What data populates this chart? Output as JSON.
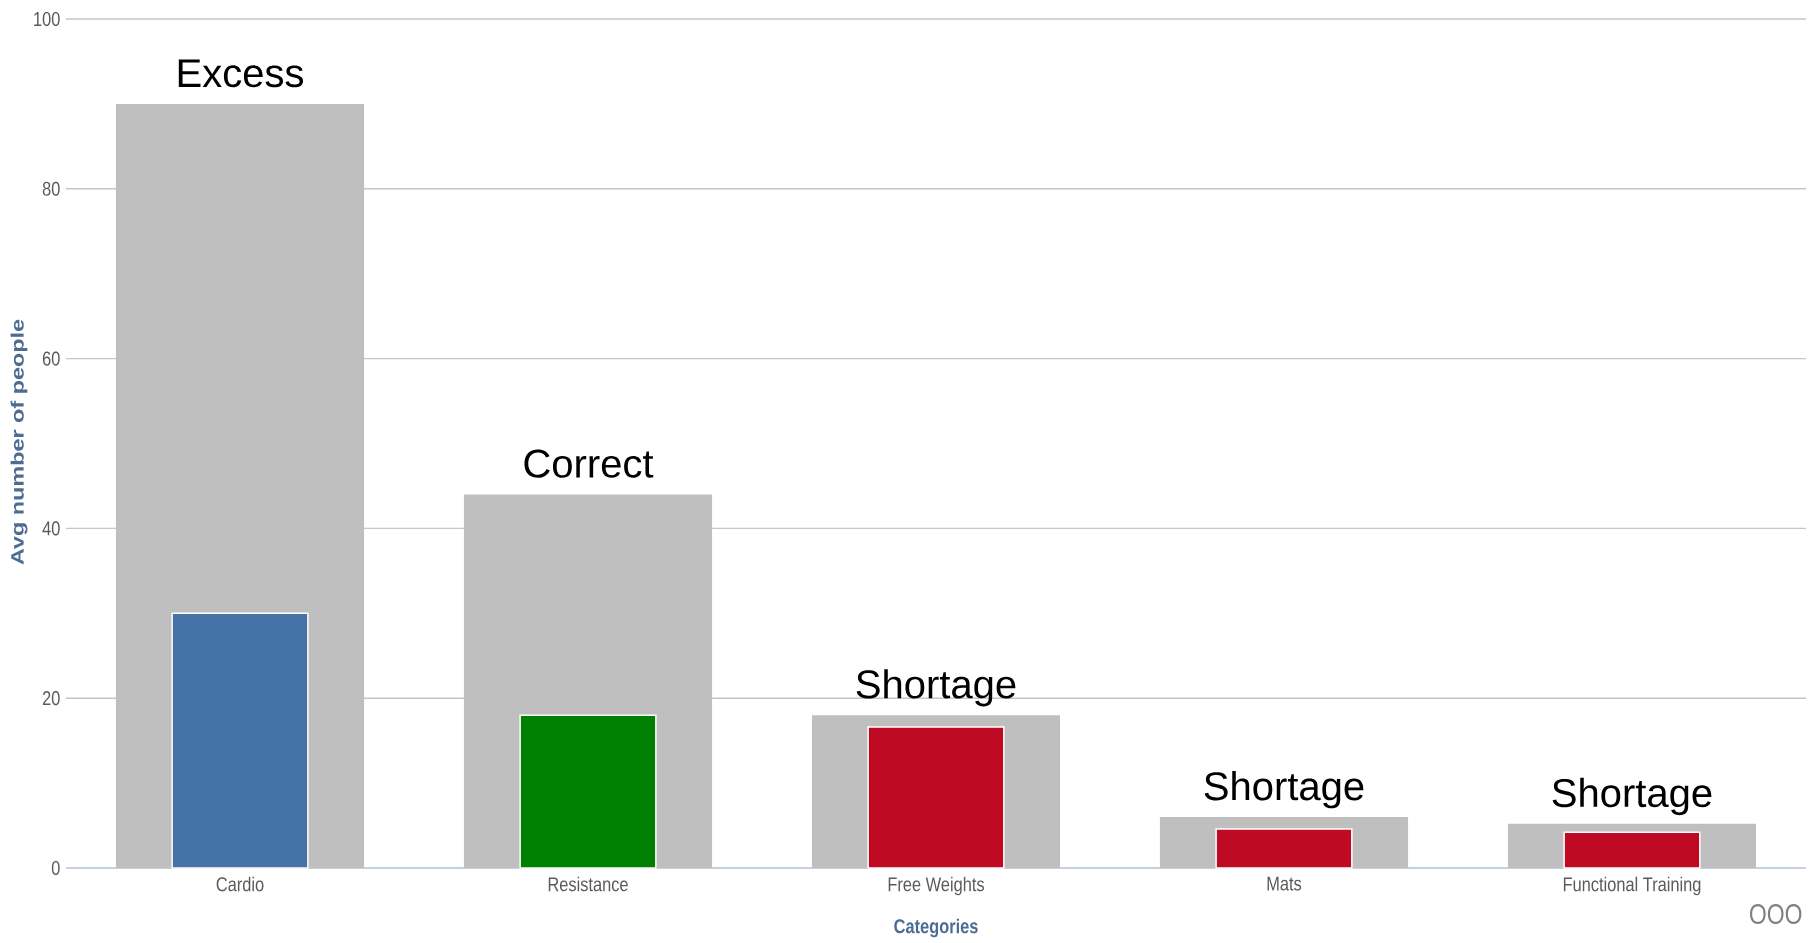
{
  "chart_data": {
    "type": "bar",
    "xlabel": "Categories",
    "ylabel": "Avg number of people",
    "categories": [
      "Cardio",
      "Resistance",
      "Free Weights",
      "Mats",
      "Functional Training"
    ],
    "series": [
      {
        "color": "#bfbfbf",
        "values": [
          90,
          44,
          18,
          6,
          5.2
        ]
      },
      {
        "colors": [
          "#4572a7",
          "#008000",
          "#bf0a23",
          "#bf0a23",
          "#bf0a23"
        ],
        "values": [
          30,
          18,
          16.6,
          4.6,
          4.2
        ]
      }
    ],
    "ylim": [
      0,
      100
    ],
    "yticks": [
      0,
      20,
      40,
      60,
      80,
      100
    ],
    "grid": "y",
    "annotations": [
      {
        "text": "Excess",
        "x": "Cardio",
        "y": 90
      },
      {
        "text": "Correct",
        "x": "Resistance",
        "y": 44
      },
      {
        "text": "Shortage",
        "x": "Free Weights",
        "y": 18
      },
      {
        "text": "Shortage",
        "x": "Mats",
        "y": 6
      },
      {
        "text": "Shortage",
        "x": "Functional Training",
        "y": 5.2
      },
      "OOO"
    ]
  }
}
